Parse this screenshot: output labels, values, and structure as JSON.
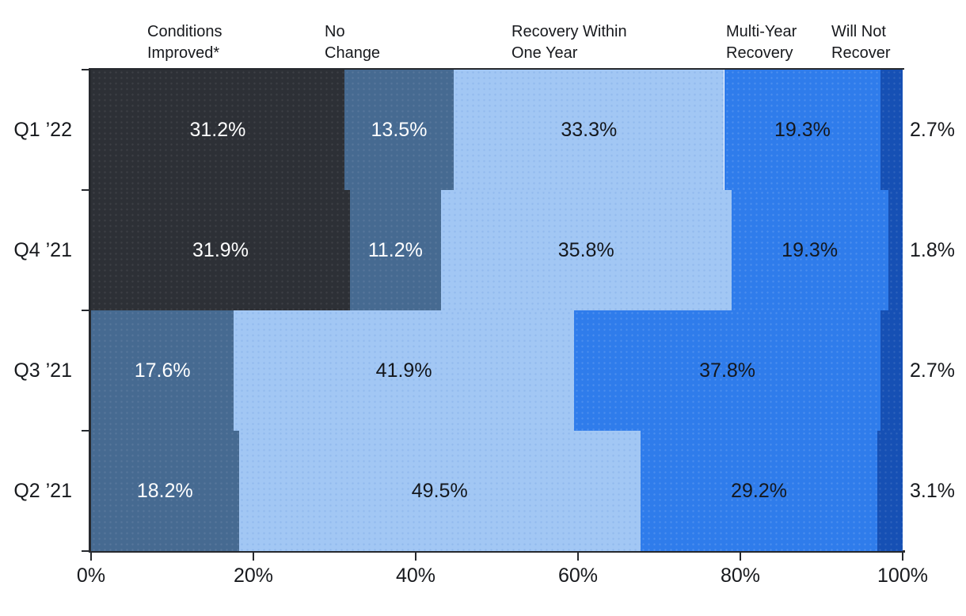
{
  "chart_data": {
    "type": "bar",
    "orientation": "horizontal",
    "stacked": true,
    "percent_of_total": true,
    "categories": [
      "Q1 ’22",
      "Q4 ’21",
      "Q3 ’21",
      "Q2 ’21"
    ],
    "series": [
      {
        "name": "Conditions Improved*",
        "label_lines": [
          "Conditions",
          "Improved*"
        ],
        "color": "#2d3036",
        "dot_color": "rgba(255,255,255,0.08)",
        "label_color": "#ffffff",
        "values": [
          31.2,
          31.9,
          null,
          null
        ]
      },
      {
        "name": "No Change",
        "label_lines": [
          "No",
          "Change"
        ],
        "color": "#466a91",
        "dot_color": "rgba(255,255,255,0.09)",
        "label_color": "#ffffff",
        "values": [
          13.5,
          11.2,
          17.6,
          18.2
        ]
      },
      {
        "name": "Recovery Within One Year",
        "label_lines": [
          "Recovery Within",
          "One Year"
        ],
        "color": "#a2c7f4",
        "dot_color": "rgba(47,108,200,0.14)",
        "label_color": "#14171c",
        "values": [
          33.3,
          35.8,
          41.9,
          49.5
        ]
      },
      {
        "name": "Multi-Year Recovery",
        "label_lines": [
          "Multi-Year",
          "Recovery"
        ],
        "color": "#2f7ceb",
        "dot_color": "rgba(255,255,255,0.14)",
        "label_color": "#14171c",
        "values": [
          19.3,
          19.3,
          37.8,
          29.2
        ]
      },
      {
        "name": "Will Not Recover",
        "label_lines": [
          "Will Not",
          "Recover"
        ],
        "color": "#1650b4",
        "dot_color": "rgba(255,255,255,0.10)",
        "label_color": "#17191d",
        "labels_outside": true,
        "values": [
          2.7,
          1.8,
          2.7,
          3.1
        ]
      }
    ],
    "x_ticks": [
      "0%",
      "20%",
      "40%",
      "60%",
      "80%",
      "100%"
    ],
    "xlim": [
      0,
      100
    ],
    "value_suffix": "%",
    "axis_color": "#26292e",
    "text_color": "#17191d",
    "background_color": "#ffffff",
    "grid": false,
    "legend_position": "top-column-headers"
  }
}
